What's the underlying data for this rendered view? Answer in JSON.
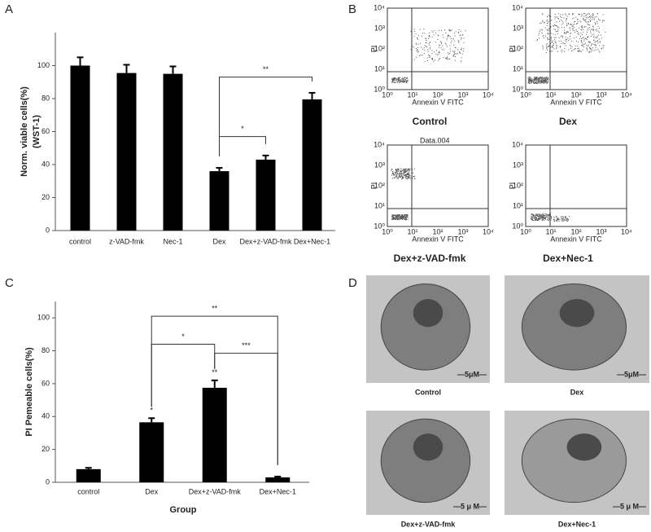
{
  "panel_labels": [
    "A",
    "B",
    "C",
    "D"
  ],
  "chart_data": [
    {
      "type": "bar",
      "ylabel": [
        "Norm. viable cells(%)",
        "(WST-1)"
      ],
      "categories": [
        "control",
        "z-VAD-fmk",
        "Nec-1",
        "Dex",
        "Dex+z-VAD-fmk",
        "Dex+Nec-1"
      ],
      "values": [
        100,
        95.5,
        95,
        36,
        43,
        79.5
      ],
      "errors": [
        5,
        5,
        4.5,
        2,
        2.5,
        4
      ],
      "color": "#000000",
      "ylim": [
        0,
        120
      ],
      "yticks": [
        0,
        20,
        40,
        60,
        80,
        100
      ],
      "annotations": [
        {
          "text": "*",
          "from": 3,
          "to": 4,
          "y": 57
        },
        {
          "text": "**",
          "from": 3,
          "to": 5,
          "y": 93
        }
      ]
    },
    {
      "type": "bar",
      "ylabel": [
        "PI Pemeable cells(%)"
      ],
      "xlabel": "Group",
      "categories": [
        "control",
        "Dex",
        "Dex+z-VAD-fmk",
        "Dex+Nec-1"
      ],
      "values": [
        8,
        36.5,
        57.5,
        3
      ],
      "errors": [
        0.8,
        2.5,
        4.5,
        0.5
      ],
      "bar_labels": [
        null,
        "*",
        "**",
        null
      ],
      "color": "#000000",
      "ylim": [
        0,
        110
      ],
      "yticks": [
        0,
        20,
        40,
        60,
        80,
        100
      ],
      "annotations": [
        {
          "text": "**",
          "from": 1,
          "to": 3,
          "y": 101
        },
        {
          "text": "*",
          "from": 1,
          "to": 2,
          "y": 84
        },
        {
          "text": "***",
          "from": 2,
          "to": 3,
          "y": 78.5
        }
      ]
    }
  ],
  "flow_cytometry": {
    "x_label": "Annexin V FITC",
    "y_label": "PI",
    "ticks": [
      "10⁰",
      "10¹",
      "10²",
      "10³",
      "10⁴"
    ],
    "plots": [
      {
        "caption": "Control"
      },
      {
        "caption": "Dex"
      },
      {
        "caption": "Dex+z-VAD-fmk",
        "header": "Data.004"
      },
      {
        "caption": "Dex+Nec-1"
      }
    ]
  },
  "micrographs": [
    {
      "caption": "Control",
      "scale_bar": "—5μM—"
    },
    {
      "caption": "Dex",
      "scale_bar": "—5μM—"
    },
    {
      "caption": "Dex+z-VAD-fmk",
      "scale_bar": "—5 μ M—"
    },
    {
      "caption": "Dex+Nec-1",
      "scale_bar": "—5 μ M—"
    }
  ]
}
